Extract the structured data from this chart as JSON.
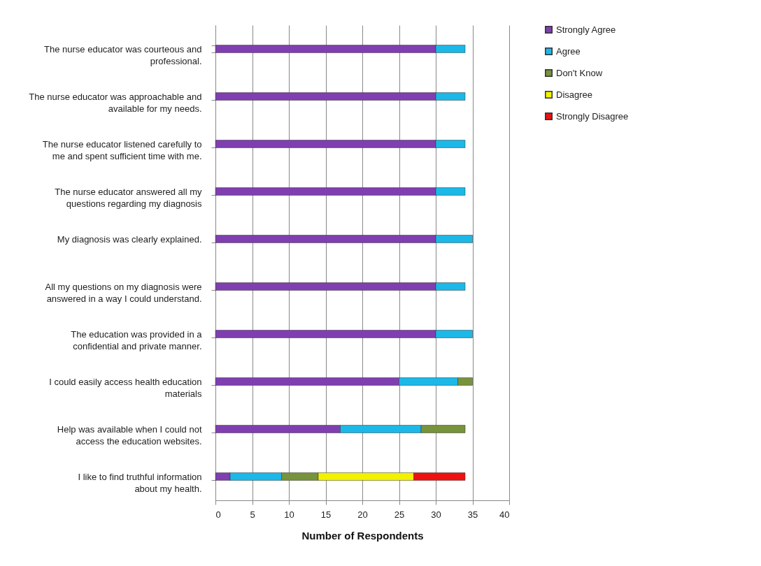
{
  "chart_data": {
    "type": "bar",
    "orientation": "horizontal",
    "stacked": true,
    "xlabel": "Number of Respondents",
    "categories": [
      "The nurse educator was courteous and professional.",
      "The nurse educator was approachable and available for my needs.",
      "The nurse educator listened carefully to me and spent sufficient time with me.",
      "The nurse educator answered all my questions regarding my diagnosis",
      "My diagnosis was clearly explained.",
      "All my questions on my diagnosis were answered in a way I could understand.",
      "The education was provided in a confidential and private manner.",
      "I could easily access health education materials",
      "Help was available when I could not access the education websites.",
      "I like to find truthful information about my health."
    ],
    "series": [
      {
        "name": "Strongly Agree",
        "color": "#7f3fb0",
        "values": [
          30,
          30,
          30,
          30,
          30,
          30,
          30,
          25,
          17,
          2
        ]
      },
      {
        "name": "Agree",
        "color": "#1cb8e8",
        "values": [
          4,
          4,
          4,
          4,
          5,
          4,
          5,
          8,
          11,
          7
        ]
      },
      {
        "name": "Don't Know",
        "color": "#77933c",
        "values": [
          null,
          null,
          null,
          null,
          null,
          null,
          null,
          2,
          6,
          5
        ]
      },
      {
        "name": "Disagree",
        "color": "#f2f200",
        "values": [
          null,
          null,
          null,
          null,
          null,
          null,
          null,
          null,
          null,
          13
        ]
      },
      {
        "name": "Strongly Disagree",
        "color": "#ee1111",
        "values": [
          null,
          null,
          null,
          null,
          null,
          null,
          null,
          null,
          null,
          7
        ]
      }
    ],
    "xlim": [
      0,
      40
    ],
    "xticks": [
      0,
      5,
      10,
      15,
      20,
      25,
      30,
      35,
      40
    ],
    "grid": "x",
    "legend": "right"
  }
}
